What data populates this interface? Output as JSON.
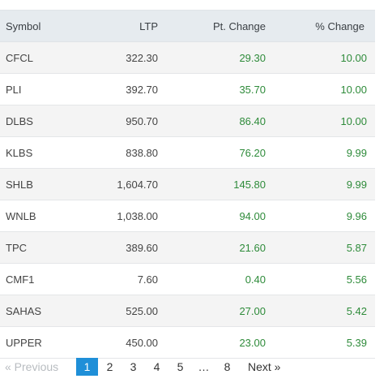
{
  "table": {
    "headers": {
      "symbol": "Symbol",
      "ltp": "LTP",
      "pt_change": "Pt. Change",
      "pct_change": "% Change"
    },
    "rows": [
      {
        "symbol": "CFCL",
        "ltp": "322.30",
        "pt_change": "29.30",
        "pct_change": "10.00"
      },
      {
        "symbol": "PLI",
        "ltp": "392.70",
        "pt_change": "35.70",
        "pct_change": "10.00"
      },
      {
        "symbol": "DLBS",
        "ltp": "950.70",
        "pt_change": "86.40",
        "pct_change": "10.00"
      },
      {
        "symbol": "KLBS",
        "ltp": "838.80",
        "pt_change": "76.20",
        "pct_change": "9.99"
      },
      {
        "symbol": "SHLB",
        "ltp": "1,604.70",
        "pt_change": "145.80",
        "pct_change": "9.99"
      },
      {
        "symbol": "WNLB",
        "ltp": "1,038.00",
        "pt_change": "94.00",
        "pct_change": "9.96"
      },
      {
        "symbol": "TPC",
        "ltp": "389.60",
        "pt_change": "21.60",
        "pct_change": "5.87"
      },
      {
        "symbol": "CMF1",
        "ltp": "7.60",
        "pt_change": "0.40",
        "pct_change": "5.56"
      },
      {
        "symbol": "SAHAS",
        "ltp": "525.00",
        "pt_change": "27.00",
        "pct_change": "5.42"
      },
      {
        "symbol": "UPPER",
        "ltp": "450.00",
        "pt_change": "23.00",
        "pct_change": "5.39"
      }
    ]
  },
  "pagination": {
    "previous": "« Previous",
    "pages": [
      "1",
      "2",
      "3",
      "4",
      "5",
      "…",
      "8"
    ],
    "current": "1",
    "next": "Next »"
  },
  "colors": {
    "positive": "#2e8b3a",
    "header_bg": "#e6ebef",
    "active_page": "#1f8fd8"
  }
}
